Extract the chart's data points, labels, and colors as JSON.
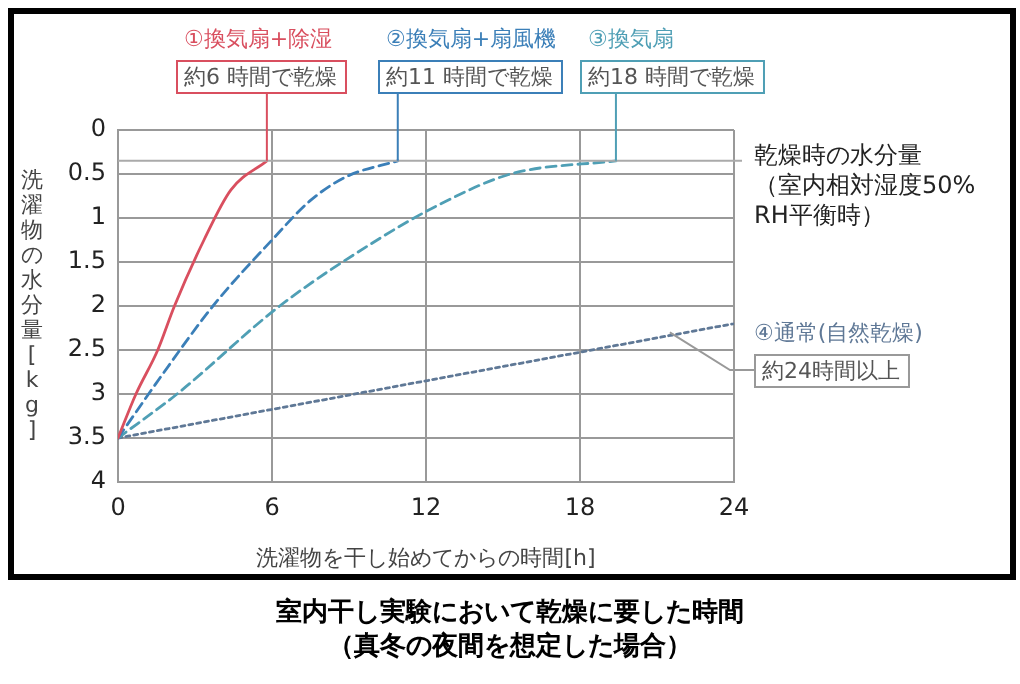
{
  "chart_data": {
    "type": "line",
    "title": "室内干し実験において乾燥に要した時間",
    "subtitle": "（真冬の夜間を想定した場合）",
    "xlabel": "洗濯物を干し始めてからの時間[h]",
    "ylabel": "洗濯物の水分量[kg]",
    "xlim": [
      0,
      24
    ],
    "xticks": [
      0,
      6,
      12,
      18,
      24
    ],
    "ylim": [
      4,
      0
    ],
    "yticks": [
      0,
      0.5,
      1,
      1.5,
      2,
      2.5,
      3,
      3.5,
      4
    ],
    "grid": true,
    "legend": false,
    "marker": "none",
    "series": [
      {
        "name": "①換気扇+除湿",
        "color": "#d94f5f",
        "line_style": "solid",
        "x": [
          0,
          0.7,
          1.55,
          2.2,
          3.35,
          4.4,
          5.8
        ],
        "values": [
          3.5,
          3,
          2.5,
          2,
          1.25,
          0.68,
          0.35
        ]
      },
      {
        "name": "②換気扇+扇風機",
        "color": "#3b7fb8",
        "line_style": "dashed",
        "x": [
          0,
          1.8,
          3.7,
          6,
          7.5,
          8.9,
          10.9
        ],
        "values": [
          3.5,
          2.75,
          2,
          1.25,
          0.8,
          0.53,
          0.35
        ]
      },
      {
        "name": "③換気扇",
        "color": "#4f9fb5",
        "line_style": "dashed",
        "x": [
          0,
          2.3,
          6.3,
          10.1,
          12.5,
          15.3,
          19.4
        ],
        "values": [
          3.5,
          3,
          2,
          1.25,
          0.85,
          0.5,
          0.35
        ]
      },
      {
        "name": "④通常(自然乾燥)",
        "color": "#5f7896",
        "line_style": "dotted",
        "x": [
          0,
          24
        ],
        "values": [
          3.5,
          2.2
        ]
      }
    ],
    "annotations": [
      {
        "text": "約6 時間で乾燥",
        "x": 5.8,
        "y": 0.35
      },
      {
        "text": "約11 時間で乾燥",
        "x": 10.9,
        "y": 0.35
      },
      {
        "text": "約18 時間で乾燥",
        "x": 19.4,
        "y": 0.35
      },
      {
        "text": "約24時間以上",
        "x": 21.5,
        "y": 2.3
      }
    ],
    "ref_lines": [
      {
        "axis": "y",
        "value": 0.35,
        "label": "乾燥時の水分量（室内相対湿度50%RH平衡時）",
        "color": "#aaaaaa"
      }
    ]
  }
}
